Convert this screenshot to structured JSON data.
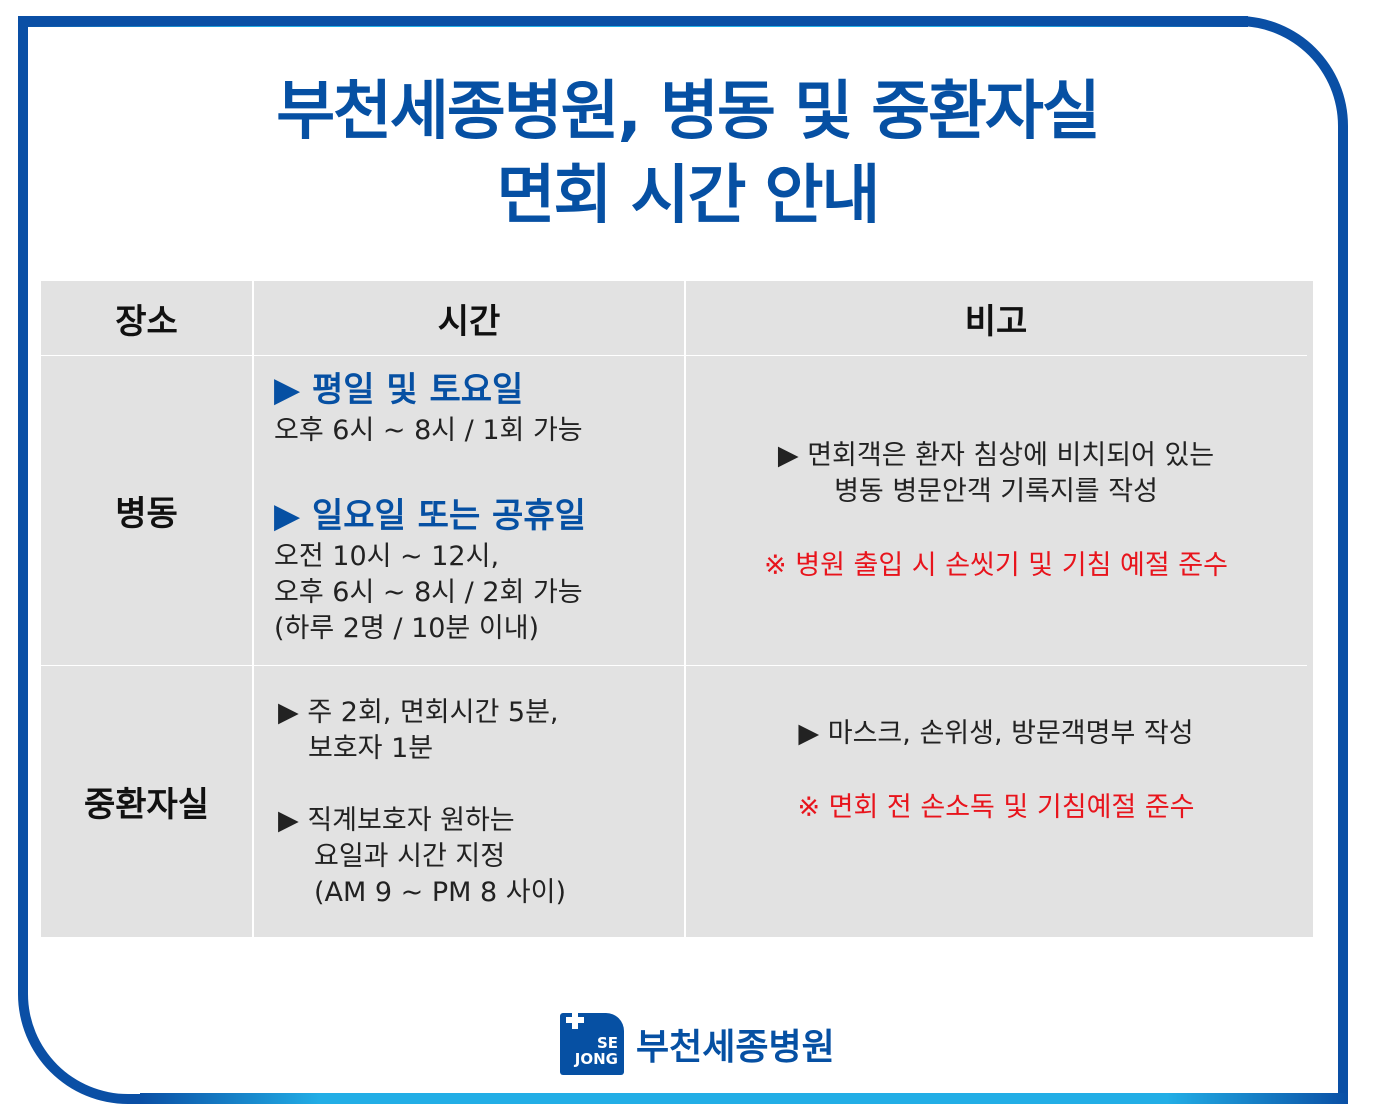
{
  "title": {
    "line1": "부천세종병원, 병동 및 중환자실",
    "line2": "면회 시간 안내"
  },
  "table": {
    "headers": [
      "장소",
      "시간",
      "비고"
    ],
    "rows": [
      {
        "place": "병동",
        "time": {
          "h1": "▶ 평일 및 토요일",
          "t1": "오후 6시 ~ 8시 / 1회 가능",
          "h2": "▶ 일요일 또는 공휴일",
          "t2a": "오전 10시 ~ 12시,",
          "t2b": "오후 6시 ~ 8시 / 2회 가능",
          "t2c": "(하루 2명 / 10분 이내)"
        },
        "note": {
          "l1": "▶ 면회객은 환자 침상에 비치되어 있는",
          "l2": "병동 병문안객 기록지를 작성",
          "warn": "※ 병원 출입 시 손씻기 및 기침 예절 준수"
        }
      },
      {
        "place": "중환자실",
        "time": {
          "a1": "▶ 주 2회, 면회시간 5분,",
          "a2": "보호자 1분",
          "b1": "▶ 직계보호자 원하는",
          "b2": "요일과 시간 지정",
          "b3": "(AM 9 ~ PM 8 사이)"
        },
        "note": {
          "l1": "▶ 마스크, 손위생, 방문객명부 작성",
          "warn": "※ 면회 전 손소독 및 기침예절 준수"
        }
      }
    ]
  },
  "logo": {
    "mark1": "SE",
    "mark2": "JONG",
    "name": "부천세종병원"
  },
  "colors": {
    "brand": "#0650a3",
    "accent": "#22aee6",
    "warning": "#e8141c",
    "table_bg": "#e2e2e2"
  }
}
